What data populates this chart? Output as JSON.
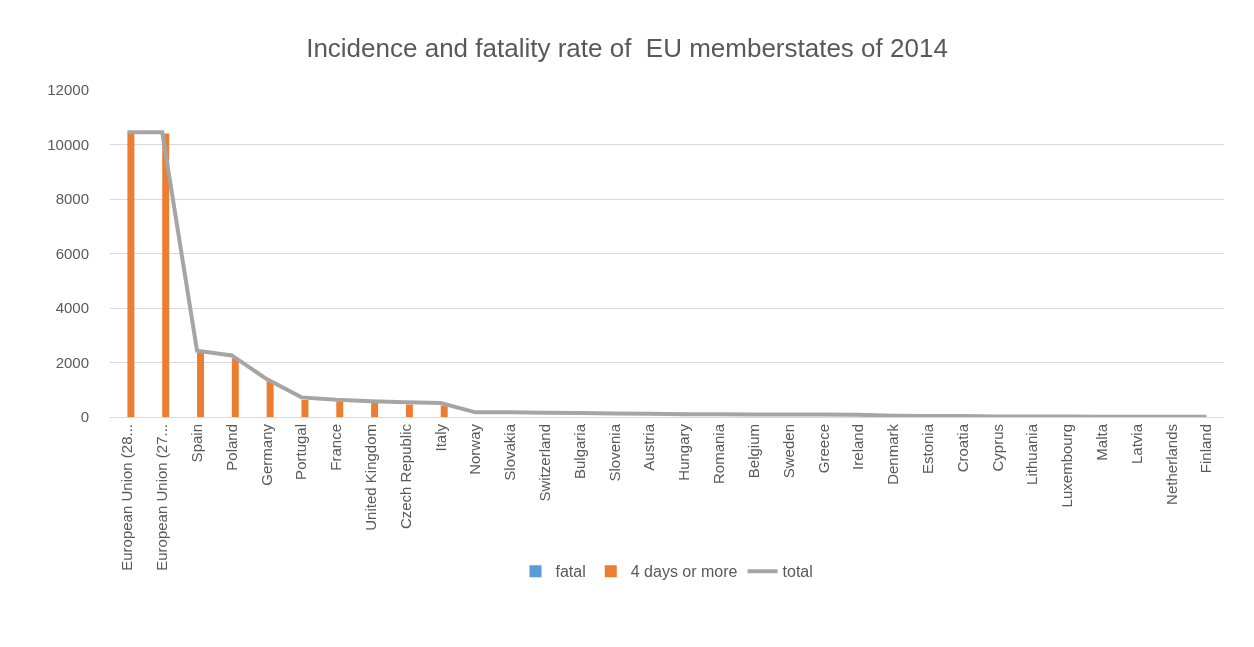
{
  "chart_data": {
    "type": "bar",
    "title": "Incidence and fatality rate of  EU memberstates of 2014",
    "categories": [
      "European Union (28...",
      "European Union (27...",
      "Spain",
      "Poland",
      "Germany",
      "Portugal",
      "France",
      "United Kingdom",
      "Czech Republic",
      "Italy",
      "Norway",
      "Slovakia",
      "Switzerland",
      "Bulgaria",
      "Slovenia",
      "Austria",
      "Hungary",
      "Romania",
      "Belgium",
      "Sweden",
      "Greece",
      "Ireland",
      "Denmark",
      "Estonia",
      "Croatia",
      "Cyprus",
      "Lithuania",
      "Luxembourg",
      "Malta",
      "Latvia",
      "Netherlands",
      "Finland"
    ],
    "series": [
      {
        "name": "fatal",
        "color": "#5b9bd5",
        "values": [
          null,
          null,
          null,
          null,
          null,
          null,
          null,
          null,
          null,
          null,
          null,
          null,
          null,
          null,
          null,
          null,
          null,
          null,
          null,
          null,
          null,
          null,
          null,
          null,
          null,
          null,
          null,
          null,
          null,
          null,
          null,
          null
        ]
      },
      {
        "name": "4 days or more",
        "color": "#ed7d31",
        "values": [
          10400,
          10400,
          2360,
          2150,
          1320,
          630,
          560,
          520,
          460,
          420,
          null,
          null,
          null,
          null,
          null,
          null,
          null,
          null,
          null,
          null,
          null,
          null,
          null,
          null,
          null,
          null,
          null,
          null,
          null,
          null,
          null,
          null
        ]
      },
      {
        "name": "total",
        "type": "line",
        "color": "#a5a5a5",
        "values": [
          10450,
          10450,
          2430,
          2260,
          1390,
          720,
          630,
          580,
          540,
          510,
          170,
          170,
          160,
          150,
          130,
          120,
          100,
          100,
          90,
          90,
          90,
          80,
          50,
          40,
          40,
          20,
          20,
          20,
          10,
          10,
          10,
          10
        ]
      }
    ],
    "ylim": [
      0,
      12000
    ],
    "yticks": [
      0,
      2000,
      4000,
      6000,
      8000,
      10000,
      12000
    ],
    "grid": "y",
    "legend": "bottom"
  }
}
